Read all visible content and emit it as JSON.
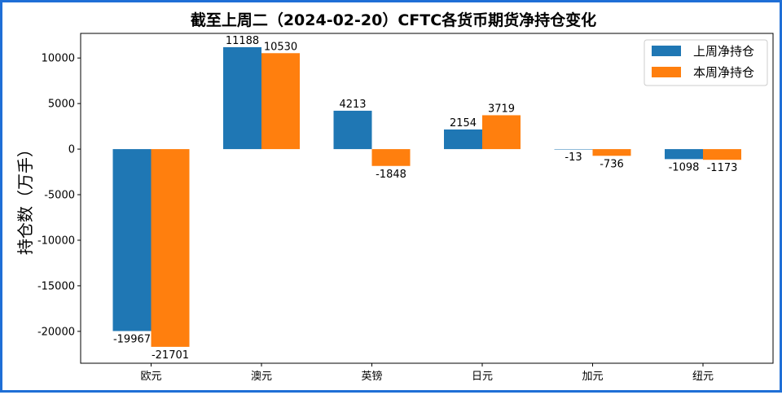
{
  "chart_data": {
    "type": "bar",
    "title": "截至上周二（2024-02-20）CFTC各货币期货净持仓变化",
    "xlabel": "",
    "ylabel": "持仓数（万手）",
    "categories": [
      "欧元",
      "澳元",
      "英镑",
      "日元",
      "加元",
      "纽元"
    ],
    "series": [
      {
        "name": "上周净持仓",
        "color": "#1f77b4",
        "values": [
          -19967,
          11188,
          4213,
          2154,
          -13,
          -1098
        ]
      },
      {
        "name": "本周净持仓",
        "color": "#ff7f0e",
        "values": [
          -21701,
          10530,
          -1848,
          3719,
          -736,
          -1173
        ]
      }
    ],
    "ylim": [
      -23500,
      12700
    ],
    "yticks": [
      -20000,
      -15000,
      -10000,
      -5000,
      0,
      5000,
      10000
    ],
    "legend": "top-right",
    "grid": false
  }
}
